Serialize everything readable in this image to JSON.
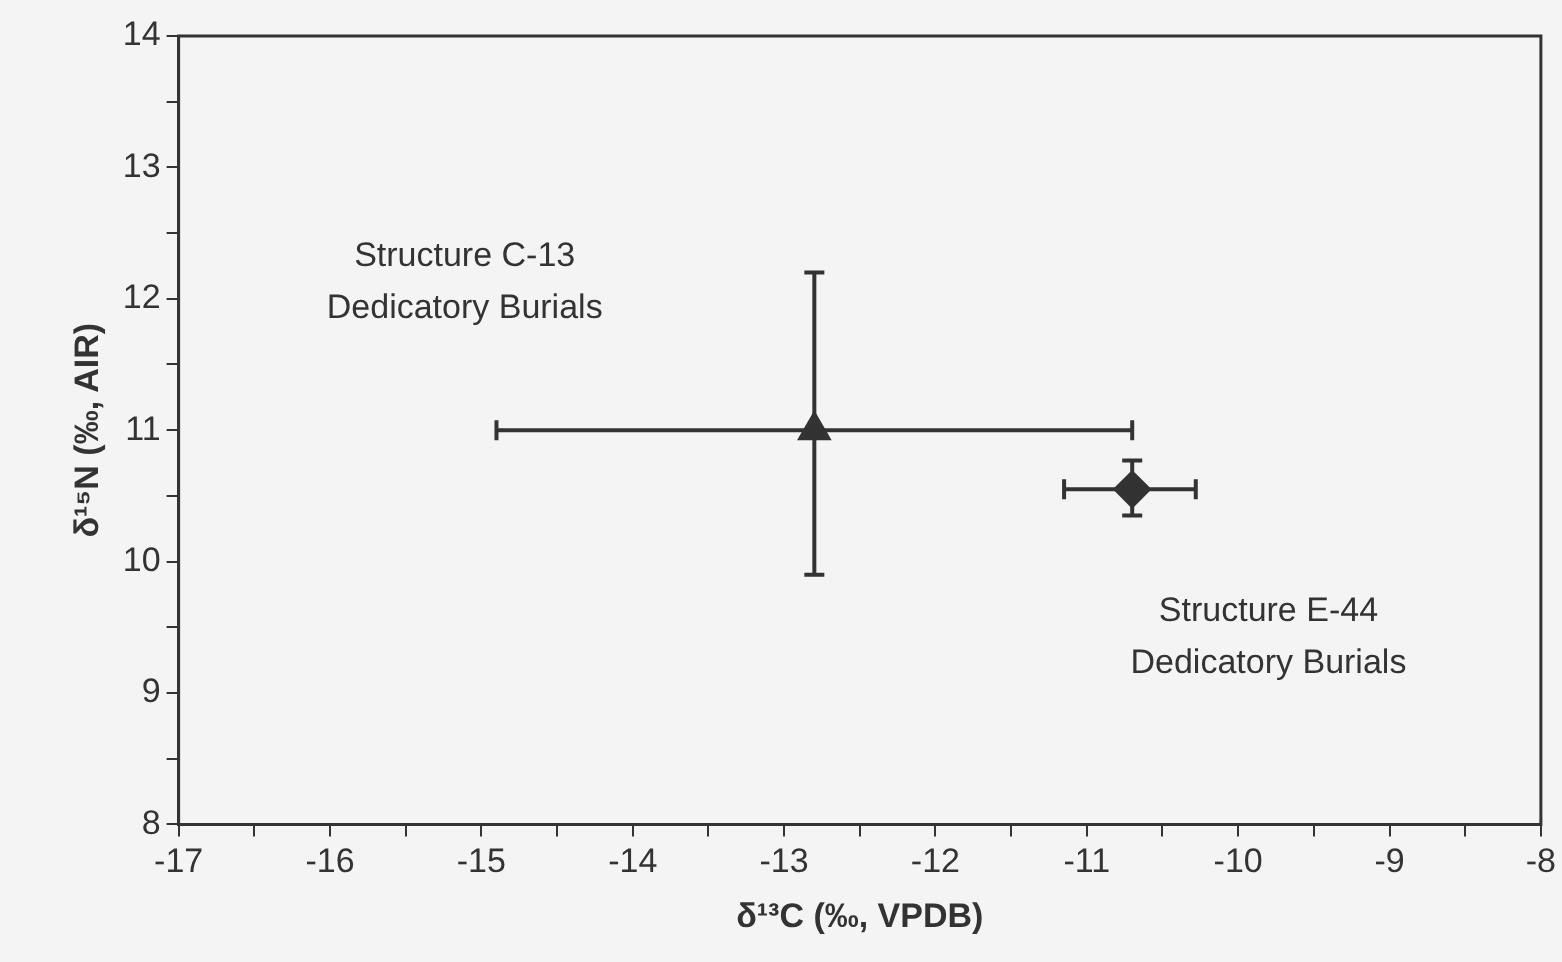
{
  "chart_data": {
    "type": "scatter",
    "xlabel": "δ¹³C (‰, VPDB)",
    "ylabel": "δ¹⁵N (‰, AIR)",
    "xlim": [
      -17,
      -8
    ],
    "xticks": [
      -17,
      {
        "value": -16.5,
        "label": null
      },
      -16,
      {
        "value": -15.5,
        "label": null
      },
      -15,
      {
        "value": -14.5,
        "label": null
      },
      -14,
      {
        "value": -13.5,
        "label": null
      },
      -13,
      {
        "value": -12.5,
        "label": null
      },
      -12,
      {
        "value": -11.5,
        "label": null
      },
      -11,
      {
        "value": -10.5,
        "label": null
      },
      -10,
      {
        "value": -9.5,
        "label": null
      },
      -9,
      {
        "value": -8.5,
        "label": null
      },
      -8
    ],
    "ylim": [
      8,
      14
    ],
    "yticks": [
      8,
      {
        "value": 8.5,
        "label": null
      },
      9,
      {
        "value": 9.5,
        "label": null
      },
      10,
      {
        "value": 10.5,
        "label": null
      },
      11,
      {
        "value": 11.5,
        "label": null
      },
      12,
      {
        "value": 12.5,
        "label": null
      },
      13,
      {
        "value": 13.5,
        "label": null
      },
      14
    ],
    "grid": false,
    "legend": false,
    "series": [
      {
        "color": "#333333",
        "marker": "triangle",
        "x": [
          -12.8
        ],
        "values": [
          11.0
        ],
        "errors": [
          [
            9.9,
            12.2
          ]
        ],
        "xerrors": [
          [
            -14.9,
            -10.7
          ]
        ]
      },
      {
        "color": "#333333",
        "marker": "diamond",
        "x": [
          -10.7
        ],
        "values": [
          10.55
        ],
        "errors": [
          [
            10.35,
            10.77
          ]
        ],
        "xerrors": [
          [
            -11.15,
            -10.28
          ]
        ]
      }
    ],
    "annotations": [
      "Structure C-13 Dedicatory Burials",
      "Structure E-44 Dedicatory Burials"
    ]
  }
}
